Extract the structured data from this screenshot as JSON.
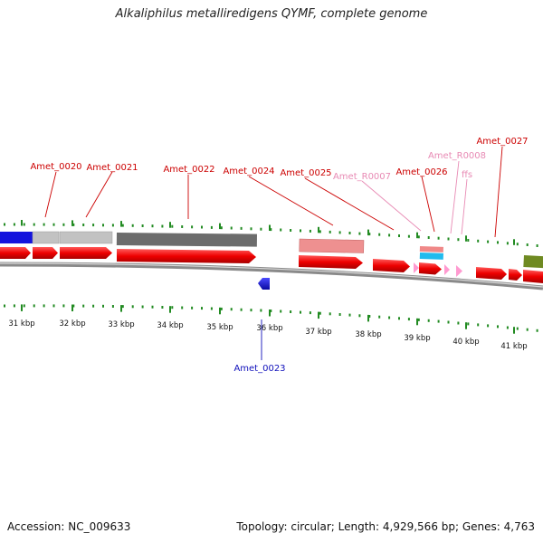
{
  "title": "Alkaliphilus metalliredigens QYMF, complete genome",
  "footer": {
    "accession": "Accession: NC_009633",
    "summary": "Topology: circular; Length: 4,929,566 bp; Genes: 4,763"
  },
  "colors": {
    "cds": "#ee0000",
    "cds_dark": "#b80000",
    "rna": "#ff9ad0",
    "blue_gene": "#1414cc",
    "tick": "#228b22",
    "backbone": "#8a8a8a",
    "label_cds": "#cc0000",
    "label_rna": "#e88ab4",
    "label_minus": "#1010bb"
  },
  "ticks": [
    {
      "label": "31 kbp"
    },
    {
      "label": "32 kbp"
    },
    {
      "label": "33 kbp"
    },
    {
      "label": "34 kbp"
    },
    {
      "label": "35 kbp"
    },
    {
      "label": "36 kbp"
    },
    {
      "label": "37 kbp"
    },
    {
      "label": "38 kbp"
    },
    {
      "label": "39 kbp"
    },
    {
      "label": "40 kbp"
    },
    {
      "label": "41 kbp"
    }
  ],
  "gene_labels": [
    {
      "text": "Amet_0020",
      "kind": "cds"
    },
    {
      "text": "Amet_0021",
      "kind": "cds"
    },
    {
      "text": "Amet_0022",
      "kind": "cds"
    },
    {
      "text": "Amet_0024",
      "kind": "cds"
    },
    {
      "text": "Amet_0025",
      "kind": "cds"
    },
    {
      "text": "Amet_R0007",
      "kind": "rna"
    },
    {
      "text": "Amet_0026",
      "kind": "cds"
    },
    {
      "text": "Amet_R0008",
      "kind": "rna"
    },
    {
      "text": "ffs",
      "kind": "rna"
    },
    {
      "text": "Amet_0027",
      "kind": "cds"
    },
    {
      "text": "Amet_0023",
      "kind": "minus"
    }
  ]
}
